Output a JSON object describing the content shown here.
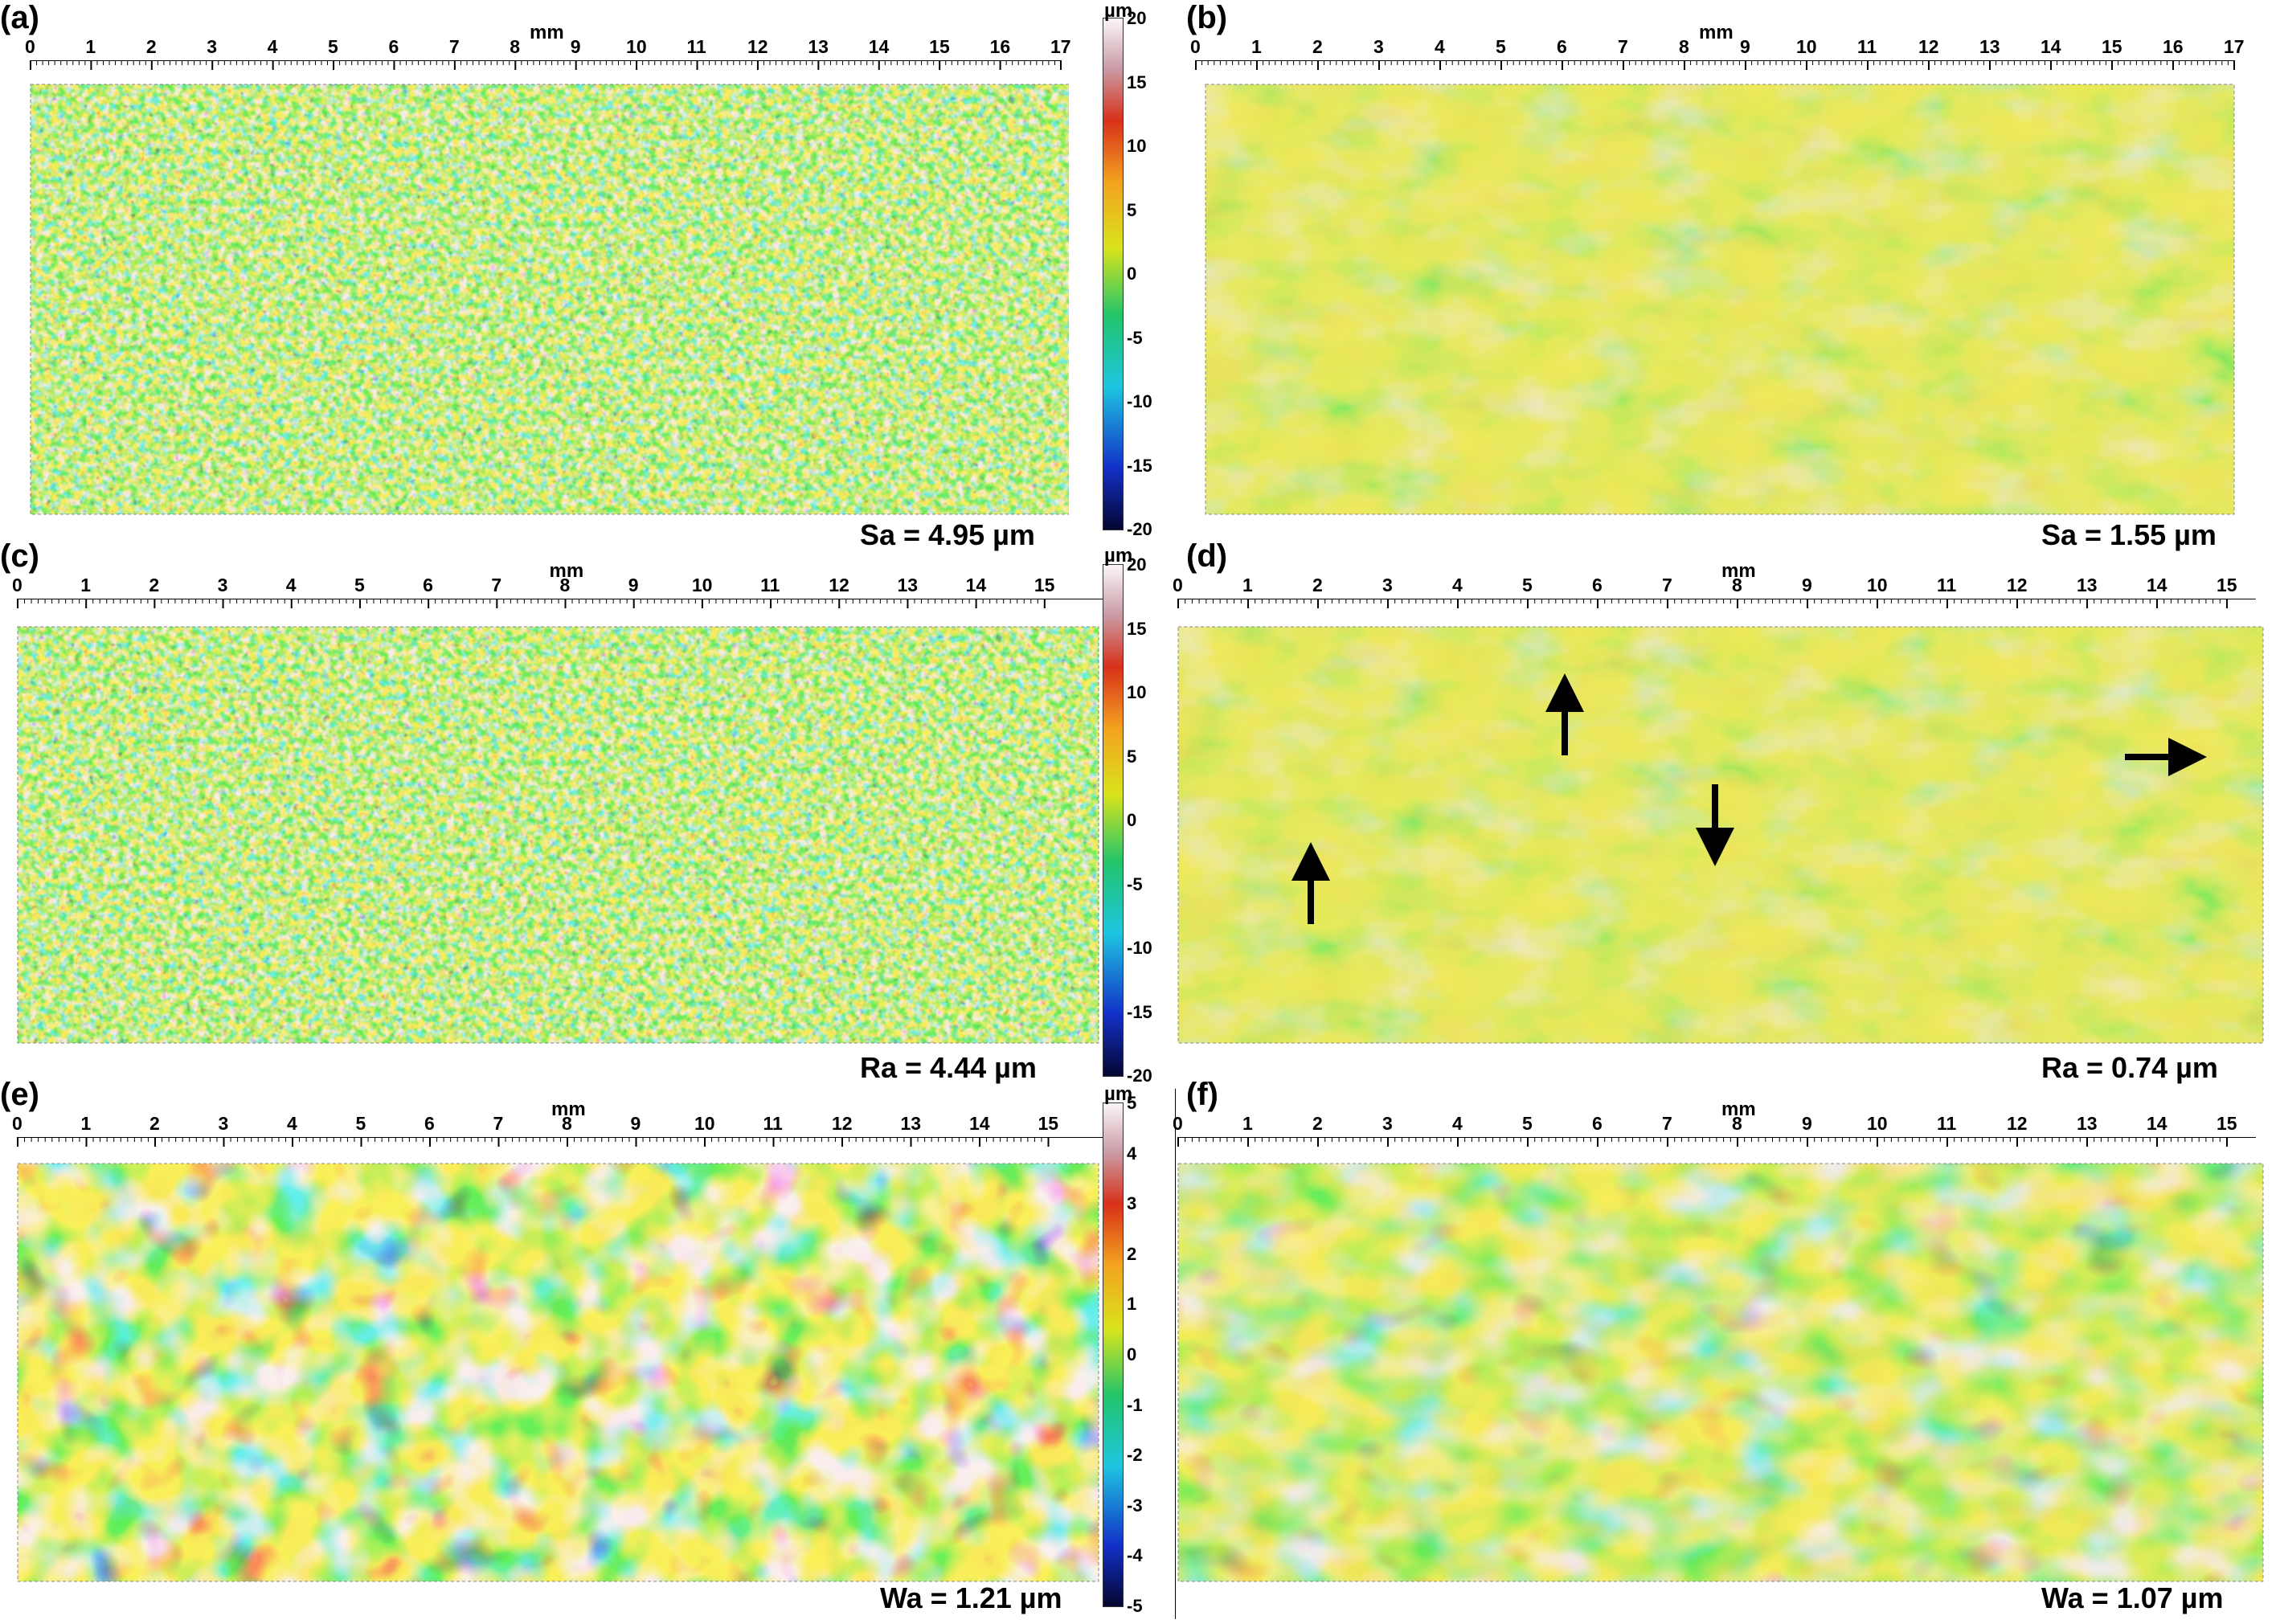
{
  "axis_unit": "mm",
  "colorbar_unit": "µm",
  "colormap": [
    "#0a0a6e",
    "#1f4fd6",
    "#22c7d8",
    "#26c46a",
    "#d8e21c",
    "#f2a020",
    "#d63a1c",
    "#c5a1a6",
    "#f6f0f2"
  ],
  "panels": [
    {
      "label": "(a)",
      "metric": "Sa = 4.95 µm",
      "x_max": 17,
      "ticks": [
        "0",
        "1",
        "2",
        "3",
        "4",
        "5",
        "6",
        "7",
        "8",
        "9",
        "10",
        "11",
        "12",
        "13",
        "14",
        "15",
        "16",
        "17"
      ],
      "style": "rough"
    },
    {
      "label": "(b)",
      "metric": "Sa = 1.55 µm",
      "x_max": 17,
      "ticks": [
        "0",
        "1",
        "2",
        "3",
        "4",
        "5",
        "6",
        "7",
        "8",
        "9",
        "10",
        "11",
        "12",
        "13",
        "14",
        "15",
        "16",
        "17"
      ],
      "style": "smooth"
    },
    {
      "label": "(c)",
      "metric": "Ra = 4.44 µm",
      "x_max": 16,
      "ticks": [
        "0",
        "1",
        "2",
        "3",
        "4",
        "5",
        "6",
        "7",
        "8",
        "9",
        "10",
        "11",
        "12",
        "13",
        "14",
        "15"
      ],
      "style": "rough"
    },
    {
      "label": "(d)",
      "metric": "Ra = 0.74 µm",
      "x_max": 16,
      "ticks": [
        "0",
        "1",
        "2",
        "3",
        "4",
        "5",
        "6",
        "7",
        "8",
        "9",
        "10",
        "11",
        "12",
        "13",
        "14",
        "15"
      ],
      "style": "smooth"
    },
    {
      "label": "(e)",
      "metric": "Wa = 1.21 µm",
      "x_max": 16,
      "ticks": [
        "0",
        "1",
        "2",
        "3",
        "4",
        "5",
        "6",
        "7",
        "8",
        "9",
        "10",
        "11",
        "12",
        "13",
        "14",
        "15"
      ],
      "style": "wavy"
    },
    {
      "label": "(f)",
      "metric": "Wa = 1.07 µm",
      "x_max": 16,
      "ticks": [
        "0",
        "1",
        "2",
        "3",
        "4",
        "5",
        "6",
        "7",
        "8",
        "9",
        "10",
        "11",
        "12",
        "13",
        "14",
        "15"
      ],
      "style": "wavy-soft"
    }
  ],
  "colorbars": [
    {
      "labels": [
        "20",
        "15",
        "10",
        "5",
        "0",
        "-5",
        "-10",
        "-15",
        "-20"
      ]
    },
    {
      "labels": [
        "20",
        "15",
        "10",
        "5",
        "0",
        "-5",
        "-10",
        "-15",
        "-20"
      ]
    },
    {
      "labels": [
        "5",
        "4",
        "3",
        "2",
        "1",
        "0",
        "-1",
        "-2",
        "-3",
        "-4",
        "-5"
      ]
    }
  ]
}
